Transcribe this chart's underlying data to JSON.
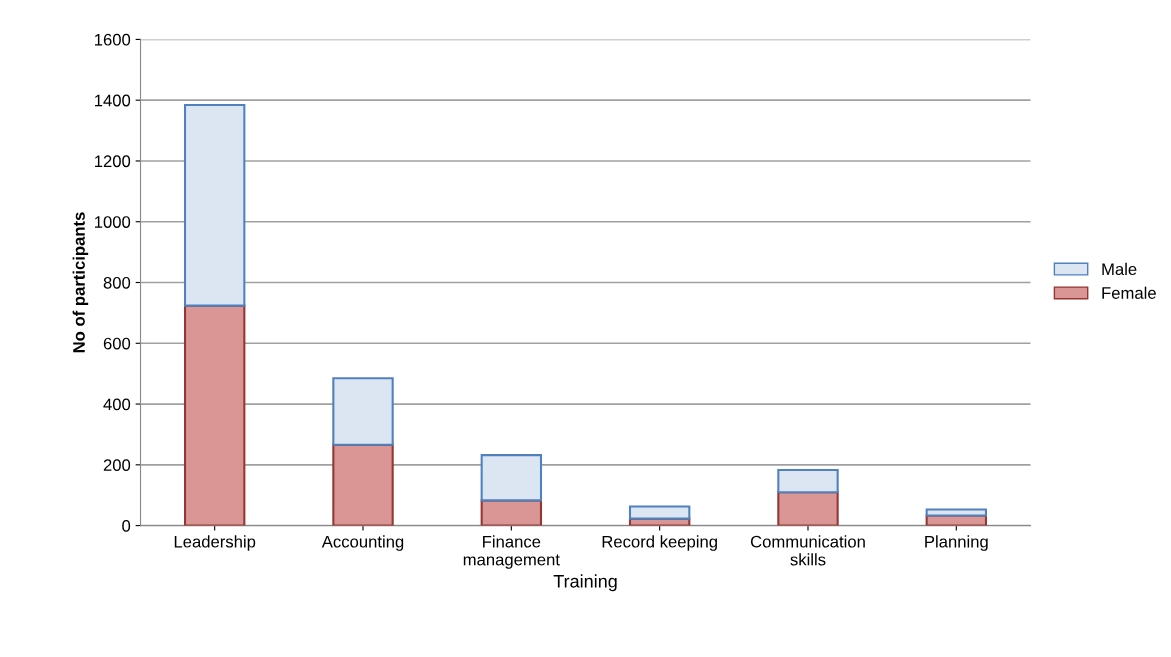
{
  "chart_data": {
    "type": "bar",
    "stacked": true,
    "xlabel": "Training",
    "ylabel": "No of participants",
    "categories": [
      "Leadership",
      "Accounting",
      "Finance\nmanagement",
      "Record keeping",
      "Communication\nskills",
      "Planning"
    ],
    "series": [
      {
        "name": "Female",
        "color": "#d99694",
        "values": [
          724,
          266,
          83,
          23,
          110,
          33
        ]
      },
      {
        "name": "Male",
        "color": "#dce6f2",
        "values": [
          660,
          219,
          149,
          40,
          73,
          20
        ]
      }
    ],
    "ylim": [
      0,
      1600
    ],
    "yticks": [
      0,
      200,
      400,
      600,
      800,
      1000,
      1200,
      1400,
      1600
    ],
    "grid": "y",
    "legend": "right"
  }
}
